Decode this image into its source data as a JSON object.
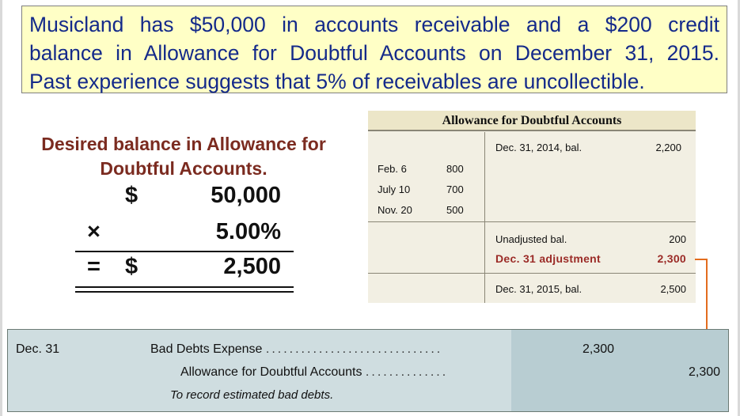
{
  "problem": {
    "line1": "Musicland has $50,000 in accounts receivable and a $200 credit",
    "line2": "balance in Allowance for Doubtful Accounts on December 31, 2015.",
    "line3": "Past experience suggests that 5% of receivables are uncollectible."
  },
  "calculation": {
    "title_line1": "Desired balance in Allowance for",
    "title_line2": "Doubtful Accounts.",
    "rows": [
      {
        "symbol": "",
        "currency": "$",
        "value": "50,000"
      },
      {
        "symbol": "×",
        "currency": "",
        "value": "5.00%"
      },
      {
        "symbol": "=",
        "currency": "$",
        "value": "2,500"
      }
    ]
  },
  "t_account": {
    "title": "Allowance for Doubtful Accounts",
    "debits": [
      {
        "date": "Feb.  6",
        "amount": "800"
      },
      {
        "date": "July  10",
        "amount": "700"
      },
      {
        "date": "Nov. 20",
        "amount": "500"
      }
    ],
    "credits": {
      "beginning": {
        "label": "Dec. 31, 2014, bal.",
        "amount": "2,200"
      },
      "unadjusted": {
        "label": "Unadjusted bal.",
        "amount": "200"
      },
      "adjustment": {
        "label": "Dec. 31 adjustment",
        "amount": "2,300"
      },
      "ending": {
        "label": "Dec. 31, 2015, bal.",
        "amount": "2,500"
      }
    }
  },
  "journal": {
    "date": "Dec. 31",
    "debit_account": "Bad Debts Expense",
    "credit_account": "Allowance for Doubtful Accounts",
    "description": "To record estimated bad debts.",
    "debit_amount": "2,300",
    "credit_amount": "2,300",
    "leader_dots_1": "..............................",
    "leader_dots_2": ".............."
  },
  "colors": {
    "problem_bg": "#ffffc6",
    "problem_text": "#142a8a",
    "heading_red": "#7b2b20",
    "adjust_red": "#9b2b27",
    "arrow_orange": "#e36c1e",
    "journal_bg": "#cfdde0"
  }
}
